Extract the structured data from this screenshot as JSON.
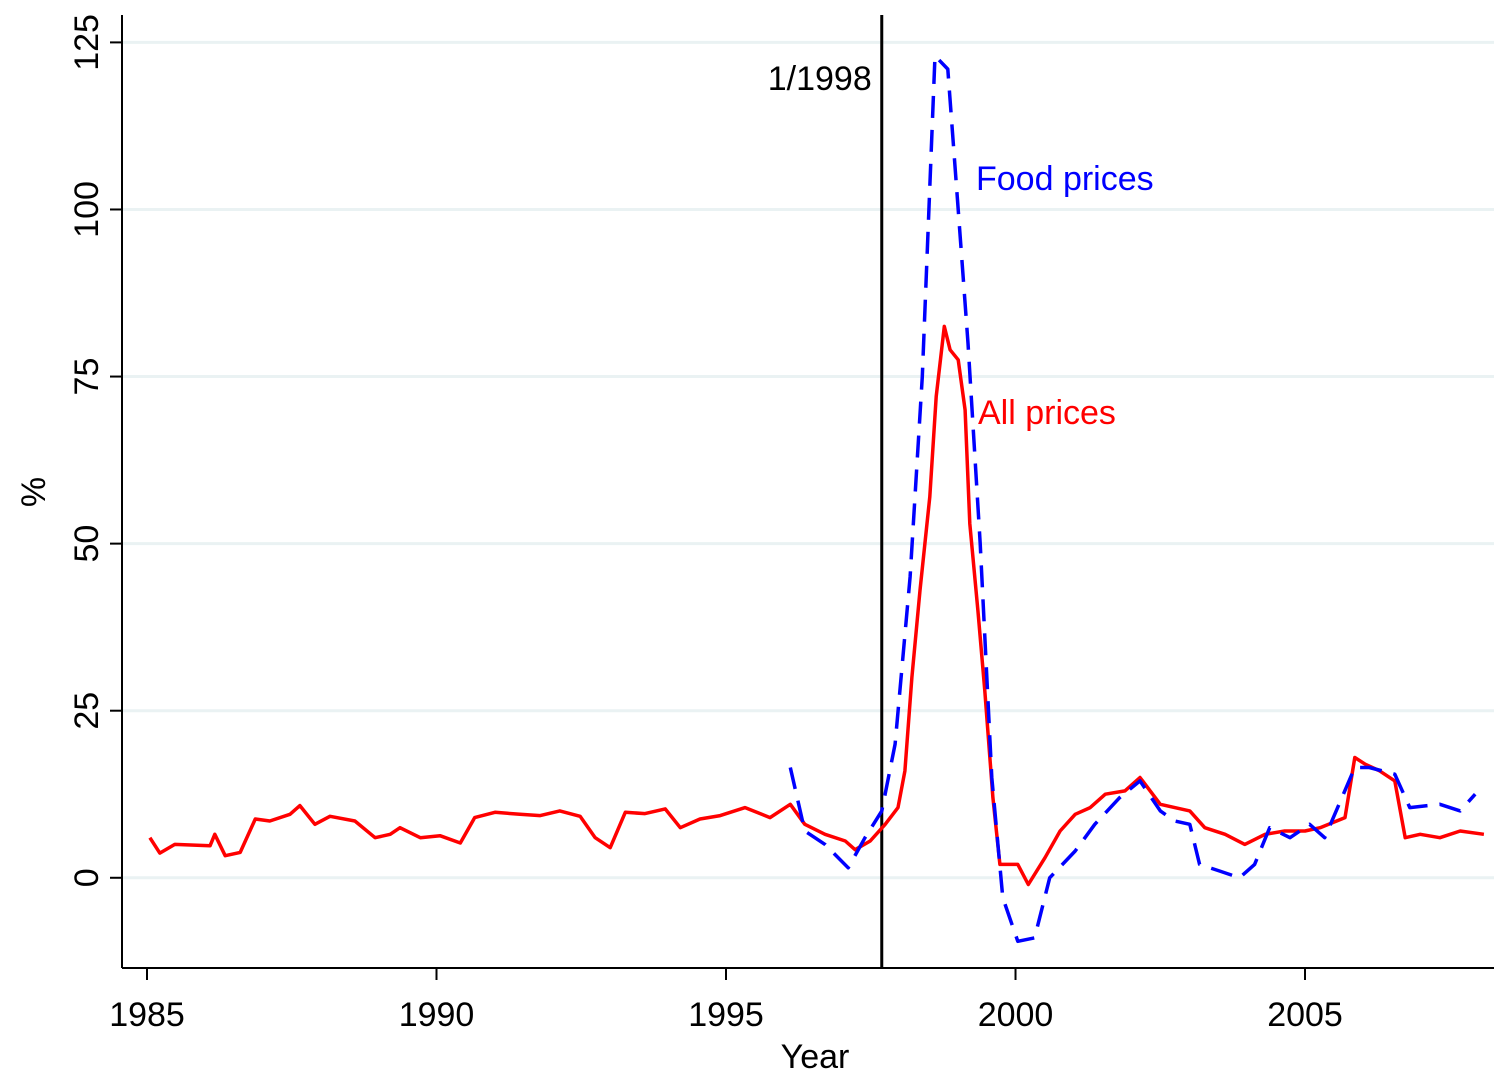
{
  "chart_data": {
    "type": "line",
    "xlabel": "Year",
    "ylabel": "%",
    "xlim": [
      1984.568,
      2008.264
    ],
    "xticks": [
      1985,
      1990,
      1995,
      2000,
      2005
    ],
    "ylim": [
      -13.5,
      129.1
    ],
    "yticks": [
      0,
      25,
      50,
      75,
      100,
      125
    ],
    "grid": true,
    "vline": {
      "x": 1997.69,
      "label": "1/1998",
      "color": "#000000"
    },
    "series": [
      {
        "name": "All prices",
        "color": "#ff0000",
        "dash": false,
        "x": [
          1985.05,
          1985.22,
          1985.48,
          1986.09,
          1986.17,
          1986.35,
          1986.61,
          1986.87,
          1987.12,
          1987.47,
          1987.64,
          1987.9,
          1988.16,
          1988.59,
          1988.94,
          1989.2,
          1989.37,
          1989.72,
          1990.06,
          1990.41,
          1990.66,
          1991.01,
          1991.44,
          1991.79,
          1992.13,
          1992.48,
          1992.74,
          1993.0,
          1993.26,
          1993.6,
          1993.95,
          1994.21,
          1994.55,
          1994.9,
          1995.33,
          1995.76,
          1996.11,
          1996.36,
          1996.71,
          1997.06,
          1997.23,
          1997.49,
          1997.75,
          1997.97,
          1998.09,
          1998.21,
          1998.35,
          1998.52,
          1998.63,
          1998.77,
          1998.87,
          1999.01,
          1999.13,
          1999.21,
          1999.35,
          1999.47,
          1999.61,
          1999.73,
          2000.04,
          2000.22,
          2000.51,
          2000.77,
          2001.03,
          2001.29,
          2001.55,
          2001.89,
          2002.15,
          2002.5,
          2002.75,
          2003.01,
          2003.27,
          2003.62,
          2003.96,
          2004.31,
          2004.65,
          2005.0,
          2005.26,
          2005.69,
          2005.86,
          2006.04,
          2006.29,
          2006.55,
          2006.73,
          2006.99,
          2007.33,
          2007.68,
          2008.09
        ],
        "values": [
          6,
          3.7,
          5,
          4.8,
          6.5,
          3.3,
          3.8,
          8.8,
          8.5,
          9.5,
          10.8,
          8,
          9.2,
          8.5,
          6,
          6.5,
          7.5,
          6,
          6.3,
          5.2,
          9,
          9.8,
          9.5,
          9.3,
          10,
          9.2,
          6,
          4.5,
          9.8,
          9.6,
          10.3,
          7.5,
          8.8,
          9.3,
          10.5,
          9,
          11,
          8,
          6.5,
          5.5,
          4.2,
          5.5,
          8,
          10.5,
          16,
          30,
          43,
          57,
          72,
          82.5,
          79,
          77.5,
          70,
          53,
          40,
          28,
          12,
          2,
          2,
          -1,
          3,
          7,
          9.5,
          10.5,
          12.5,
          13,
          15,
          11,
          10.5,
          10,
          7.5,
          6.5,
          5,
          6.5,
          7,
          7,
          7.5,
          9,
          18,
          17,
          16,
          14.5,
          6,
          6.5,
          6,
          7,
          6.5
        ]
      },
      {
        "name": "Food prices",
        "color": "#0000ff",
        "dash": true,
        "x": [
          1996.11,
          1996.36,
          1996.71,
          1997.11,
          1997.4,
          1997.69,
          1997.92,
          1998.18,
          1998.39,
          1998.61,
          1998.83,
          1999.01,
          1999.18,
          1999.39,
          1999.59,
          1999.78,
          2000.04,
          2000.33,
          2000.59,
          2001.03,
          2001.37,
          2001.8,
          2002.15,
          2002.5,
          2002.75,
          2003.01,
          2003.18,
          2003.53,
          2003.87,
          2004.13,
          2004.39,
          2004.74,
          2005.08,
          2005.34,
          2005.86,
          2006.11,
          2006.55,
          2006.81,
          2007.33,
          2007.68,
          2007.94
        ],
        "values": [
          16.5,
          7,
          5,
          1.5,
          6,
          10,
          20,
          45,
          75,
          123,
          121,
          100,
          80,
          50,
          15,
          -3,
          -9.5,
          -9,
          0,
          4,
          8,
          12,
          14.5,
          10,
          8.5,
          8,
          2,
          1,
          0,
          2,
          7.5,
          6,
          8,
          6,
          16.5,
          16.5,
          15.5,
          10.5,
          11,
          10,
          12.5
        ]
      }
    ]
  }
}
